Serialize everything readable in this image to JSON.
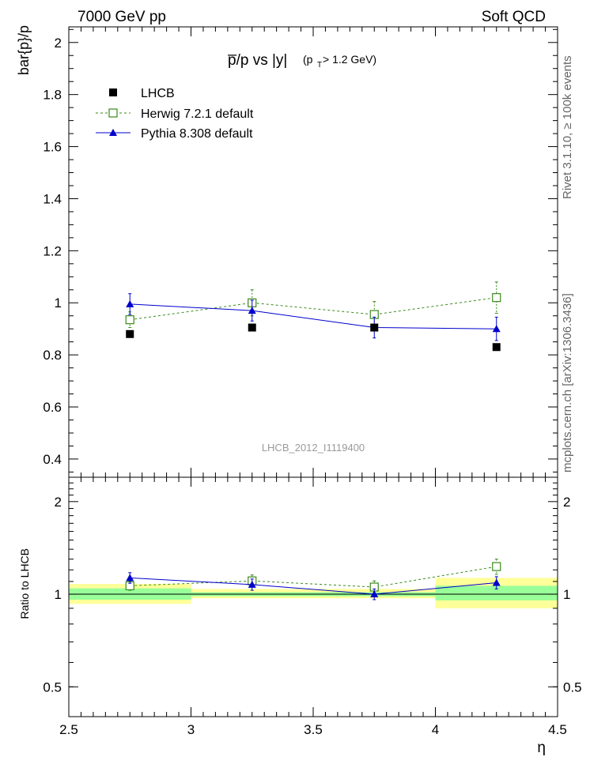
{
  "header": {
    "left": "7000 GeV pp",
    "right": "Soft QCD"
  },
  "side_text": {
    "rivet": "Rivet 3.1.10, ≥ 100k events",
    "mcplots": "mcplots.cern.ch [arXiv:1306.3436]"
  },
  "chart_data": [
    {
      "type": "line",
      "title": "p̅/p vs |y|",
      "title_suffix": "(p",
      "title_sub": "T",
      "title_cut": " > 1.2 GeV)",
      "ylabel": "bar{p}/p",
      "watermark": "LHCB_2012_I1119400",
      "xlim": [
        2.5,
        4.5
      ],
      "ylim": [
        0.33,
        2.06
      ],
      "yticks": [
        0.4,
        0.6,
        0.8,
        1,
        1.2,
        1.4,
        1.6,
        1.8,
        2
      ],
      "ytick_labels": [
        "0.4",
        "0.6",
        "0.8",
        "1",
        "1.2",
        "1.4",
        "1.6",
        "1.8",
        "2"
      ],
      "legend_position": "top-left",
      "x": [
        2.75,
        3.25,
        3.75,
        4.25
      ],
      "series": [
        {
          "name": "LHCB",
          "values": [
            0.88,
            0.905,
            0.905,
            0.83
          ],
          "errors": [
            0.012,
            0.012,
            0.012,
            0.012
          ],
          "color": "#000000",
          "marker": "filled-square"
        },
        {
          "name": "Herwig 7.2.1 default",
          "values": [
            0.935,
            1.0,
            0.955,
            1.02
          ],
          "errors": [
            0.03,
            0.05,
            0.05,
            0.06
          ],
          "color": "#3a8a1a",
          "marker": "open-square",
          "style": "dashed"
        },
        {
          "name": "Pythia 8.308 default",
          "values": [
            0.995,
            0.97,
            0.905,
            0.9
          ],
          "errors": [
            0.04,
            0.04,
            0.04,
            0.045
          ],
          "color": "#0000cc",
          "marker": "triangle",
          "style": "solid"
        }
      ]
    },
    {
      "type": "line",
      "ylabel": "Ratio to LHCB",
      "xlabel": "η",
      "xlim": [
        2.5,
        4.5
      ],
      "ylim": [
        0.4,
        2.4
      ],
      "y_scale": "log",
      "yticks": [
        0.5,
        1,
        2
      ],
      "ytick_labels": [
        "0.5",
        "1",
        "2"
      ],
      "xticks": [
        2.5,
        3,
        3.5,
        4,
        4.5
      ],
      "xtick_labels": [
        "2.5",
        "3",
        "3.5",
        "4",
        "4.5"
      ],
      "bands": [
        {
          "x": [
            2.5,
            3.0
          ],
          "green": [
            0.96,
            1.045
          ],
          "yellow": [
            0.93,
            1.08
          ]
        },
        {
          "x": [
            3.0,
            4.0
          ],
          "green": [
            0.985,
            1.015
          ],
          "yellow": [
            0.97,
            1.04
          ]
        },
        {
          "x": [
            4.0,
            4.5
          ],
          "green": [
            0.955,
            1.065
          ],
          "yellow": [
            0.9,
            1.13
          ]
        }
      ],
      "band_colors": {
        "yellow": "#ffff99",
        "green": "#99ff99"
      },
      "x": [
        2.75,
        3.25,
        3.75,
        4.25
      ],
      "series": [
        {
          "name": "Herwig 7.2.1 default",
          "values": [
            1.065,
            1.105,
            1.055,
            1.23
          ],
          "errors": [
            0.035,
            0.05,
            0.05,
            0.07
          ],
          "color": "#3a8a1a",
          "marker": "open-square",
          "style": "dashed"
        },
        {
          "name": "Pythia 8.308 default",
          "values": [
            1.13,
            1.075,
            1.0,
            1.09
          ],
          "errors": [
            0.045,
            0.045,
            0.04,
            0.05
          ],
          "color": "#0000cc",
          "marker": "triangle",
          "style": "solid"
        }
      ]
    }
  ]
}
